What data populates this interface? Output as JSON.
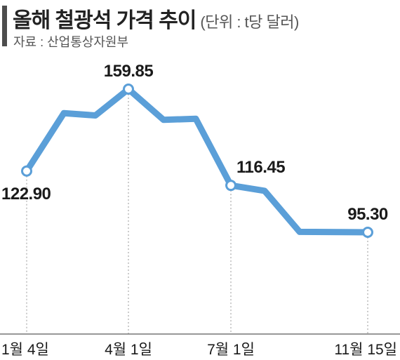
{
  "header": {
    "title": "올해 철광석 가격 추이",
    "unit": "(단위 : t당 달러)",
    "source": "자료 : 산업통상자원부"
  },
  "chart_data": {
    "type": "line",
    "title": "올해 철광석 가격 추이",
    "unit": "(단위 : t당 달러)",
    "series": [
      {
        "x": [
          "1월 4일",
          "",
          "",
          "4월 1일",
          "",
          "",
          "7월 1일",
          "",
          "",
          "11월 15일"
        ],
        "values": [
          122.9,
          149,
          148,
          159.85,
          146,
          146.5,
          116.45,
          114,
          95.5,
          95.3
        ]
      }
    ],
    "labeled_points": [
      {
        "index": 0,
        "label": "122.90"
      },
      {
        "index": 3,
        "label": "159.85"
      },
      {
        "index": 6,
        "label": "116.45"
      },
      {
        "index": 9,
        "label": "95.30"
      }
    ],
    "x_ticks": [
      "1월 4일",
      "4월 1일",
      "7월 1일",
      "11월 15일"
    ],
    "line_color": "#5b9fd8",
    "grid": false
  }
}
